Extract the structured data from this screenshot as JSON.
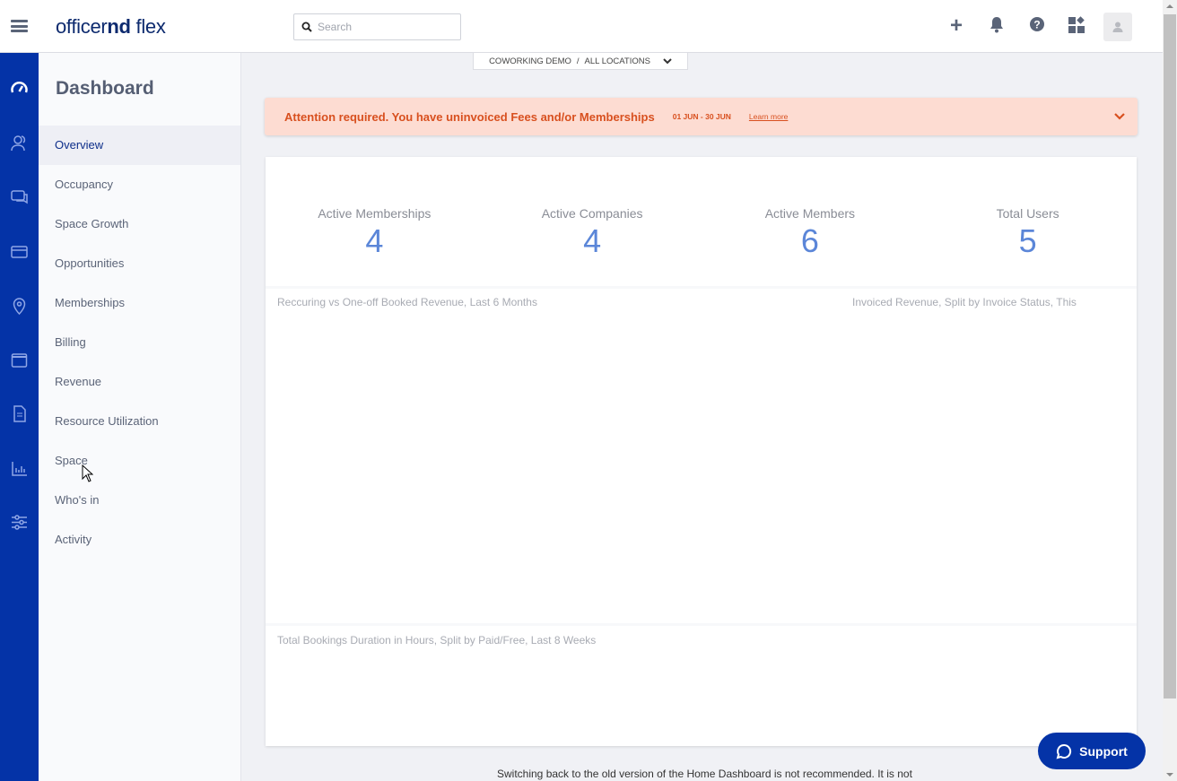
{
  "header": {
    "logo_regular": "officer",
    "logo_bold": "nd",
    "logo_tail": " flex",
    "search_placeholder": "Search"
  },
  "location": {
    "company": "COWORKING DEMO",
    "separator": "/",
    "locations": "ALL LOCATIONS"
  },
  "sidebar": {
    "title": "Dashboard",
    "items": [
      {
        "label": "Overview",
        "active": true
      },
      {
        "label": "Occupancy"
      },
      {
        "label": "Space Growth"
      },
      {
        "label": "Opportunities"
      },
      {
        "label": "Memberships"
      },
      {
        "label": "Billing"
      },
      {
        "label": "Revenue"
      },
      {
        "label": "Resource Utilization"
      },
      {
        "label": "Space"
      },
      {
        "label": "Who's in"
      },
      {
        "label": "Activity"
      }
    ]
  },
  "rail_icons": [
    "dashboard-icon",
    "members-icon",
    "chat-icon",
    "billing-card-icon",
    "location-pin-icon",
    "calendar-icon",
    "document-icon",
    "reports-chart-icon",
    "settings-sliders-icon"
  ],
  "alert": {
    "message": "Attention required. You have uninvoiced Fees and/or Memberships",
    "date_range": "01 JUN - 30 JUN",
    "link": "Learn more"
  },
  "stats": [
    {
      "label": "Active Memberships",
      "value": "4"
    },
    {
      "label": "Active Companies",
      "value": "4"
    },
    {
      "label": "Active Members",
      "value": "6"
    },
    {
      "label": "Total Users",
      "value": "5"
    }
  ],
  "charts": {
    "booked_revenue_title": "Reccuring vs One-off Booked Revenue, Last 6 Months",
    "invoiced_revenue_title": "Invoiced Revenue, Split by Invoice Status, This",
    "bookings_title": "Total Bookings Duration in Hours, Split by Paid/Free, Last 8 Weeks"
  },
  "footer": {
    "notice": "Switching back to the old version of the Home Dashboard is not recommended. It is not"
  },
  "support": {
    "label": "Support"
  },
  "colors": {
    "brand": "#0433a7",
    "alert_text": "#d8501f",
    "alert_bg": "#fddcd2",
    "stat_value": "#5b86d8"
  }
}
